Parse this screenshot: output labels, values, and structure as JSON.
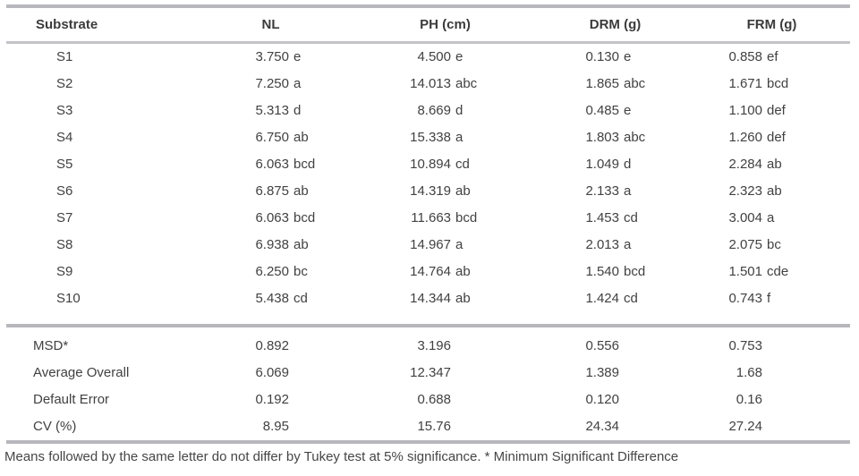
{
  "table": {
    "columns": [
      "Substrate",
      "NL",
      "PH (cm)",
      "DRM (g)",
      "FRM (g)"
    ],
    "rows": [
      {
        "substrate": "S1",
        "nl": "3.750 e",
        "ph": "4.500 e",
        "drm": "0.130 e",
        "frm": "0.858 ef"
      },
      {
        "substrate": "S2",
        "nl": "7.250 a",
        "ph": "14.013 abc",
        "drm": "1.865 abc",
        "frm": "1.671 bcd"
      },
      {
        "substrate": "S3",
        "nl": "5.313 d",
        "ph": "8.669 d",
        "drm": "0.485 e",
        "frm": "1.100 def"
      },
      {
        "substrate": "S4",
        "nl": "6.750 ab",
        "ph": "15.338 a",
        "drm": "1.803 abc",
        "frm": "1.260 def"
      },
      {
        "substrate": "S5",
        "nl": "6.063 bcd",
        "ph": "10.894 cd",
        "drm": "1.049 d",
        "frm": "2.284 ab"
      },
      {
        "substrate": "S6",
        "nl": "6.875 ab",
        "ph": "14.319 ab",
        "drm": "2.133 a",
        "frm": "2.323 ab"
      },
      {
        "substrate": "S7",
        "nl": "6.063 bcd",
        "ph": "11.663 bcd",
        "drm": "1.453 cd",
        "frm": "3.004 a"
      },
      {
        "substrate": "S8",
        "nl": "6.938 ab",
        "ph": "14.967 a",
        "drm": "2.013 a",
        "frm": "2.075 bc"
      },
      {
        "substrate": "S9",
        "nl": "6.250 bc",
        "ph": "14.764 ab",
        "drm": "1.540 bcd",
        "frm": "1.501 cde"
      },
      {
        "substrate": "S10",
        "nl": "5.438 cd",
        "ph": "14.344 ab",
        "drm": "1.424 cd",
        "frm": "0.743 f"
      }
    ],
    "summary": [
      {
        "label": "MSD*",
        "nl": "0.892",
        "ph": "3.196",
        "drm": "0.556",
        "frm": "0.753"
      },
      {
        "label": "Average Overall",
        "nl": "6.069",
        "ph": "12.347",
        "drm": "1.389",
        "frm": "1.68"
      },
      {
        "label": "Default Error",
        "nl": "0.192",
        "ph": "0.688",
        "drm": "0.120",
        "frm": "0.16"
      },
      {
        "label": "CV (%)",
        "nl": "8.95",
        "ph": "15.76",
        "drm": "24.34",
        "frm": "27.24"
      }
    ],
    "footnote": "Means followed by the same letter do not differ by Tukey test at 5% significance. * Minimum Significant Difference",
    "colors": {
      "rule": "#b7b7bd",
      "text": "#414141"
    }
  }
}
